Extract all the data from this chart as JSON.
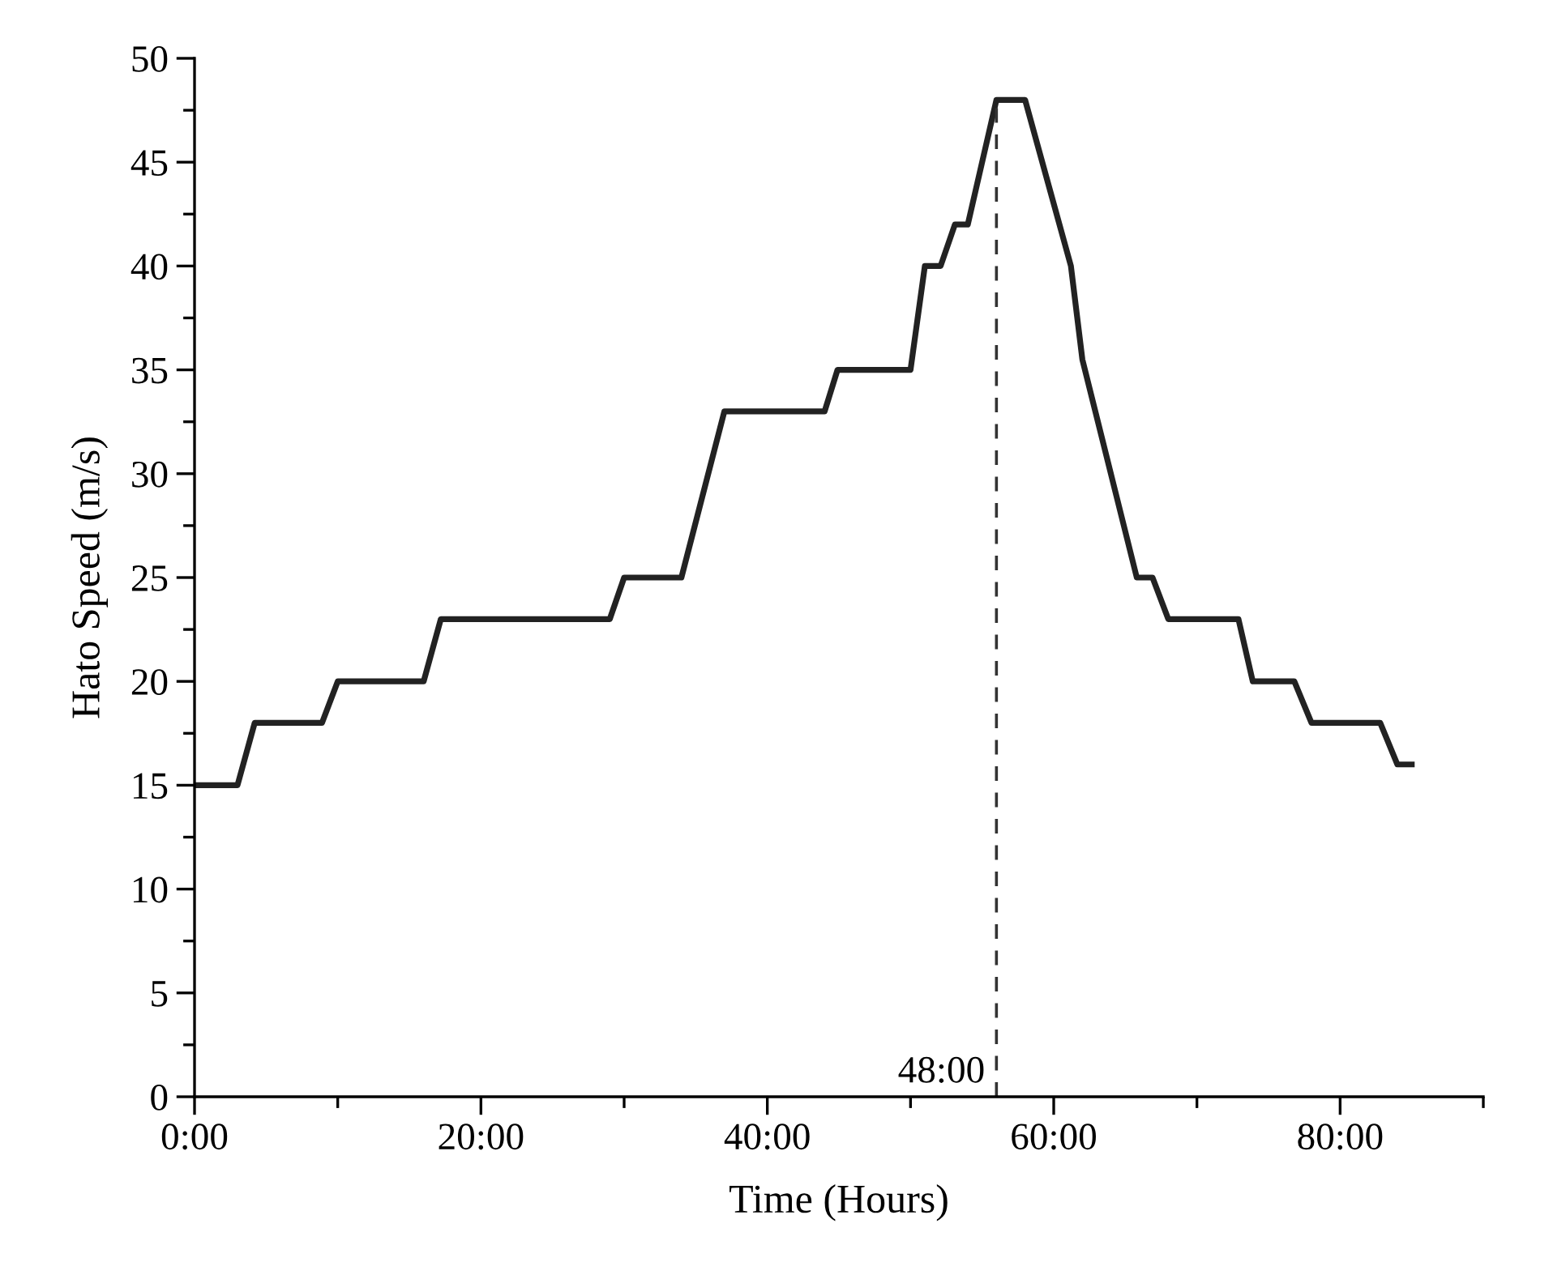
{
  "chart_data": {
    "type": "line",
    "xlabel": "Time (Hours)",
    "ylabel": "Hato Speed (m/s)",
    "x": [
      0,
      3,
      4.2,
      8.9,
      10,
      16,
      17.2,
      29,
      30,
      34,
      37,
      44,
      44.9,
      50,
      51,
      52.1,
      53.1,
      54,
      56,
      58,
      61.2,
      62,
      65.8,
      66.9,
      68,
      72.9,
      73.9,
      76.8,
      78,
      82.8,
      84,
      85
    ],
    "series": [
      {
        "color": "#222222",
        "values": [
          15,
          15,
          18,
          18,
          20,
          20,
          23,
          23,
          25,
          25,
          33,
          33,
          35,
          35,
          40,
          40,
          42,
          42,
          48,
          48,
          40,
          35.5,
          25,
          25,
          23,
          23,
          20,
          20,
          18,
          18,
          16,
          16
        ]
      }
    ],
    "xlim": [
      0,
      90
    ],
    "ylim": [
      0,
      50
    ],
    "xticks": [
      {
        "value": 0,
        "label": "0:00"
      },
      {
        "value": 10,
        "label": null
      },
      {
        "value": 20,
        "label": "20:00"
      },
      {
        "value": 30,
        "label": null
      },
      {
        "value": 40,
        "label": "40:00"
      },
      {
        "value": 50,
        "label": null
      },
      {
        "value": 60,
        "label": "60:00"
      },
      {
        "value": 70,
        "label": null
      },
      {
        "value": 80,
        "label": "80:00"
      },
      {
        "value": 90,
        "label": null
      }
    ],
    "yticks": [
      0,
      {
        "value": 2.5,
        "label": null
      },
      5,
      {
        "value": 7.5,
        "label": null
      },
      10,
      {
        "value": 12.5,
        "label": null
      },
      15,
      {
        "value": 17.5,
        "label": null
      },
      20,
      {
        "value": 22.5,
        "label": null
      },
      25,
      {
        "value": 27.5,
        "label": null
      },
      30,
      {
        "value": 32.5,
        "label": null
      },
      35,
      {
        "value": 37.5,
        "label": null
      },
      40,
      {
        "value": 42.5,
        "label": null
      },
      45,
      {
        "value": 47.5,
        "label": null
      },
      50
    ],
    "ref_lines": [
      {
        "axis": "x",
        "value": 56,
        "color": "#333333",
        "line_style": "dashed"
      }
    ],
    "annotations": [
      "48:00"
    ],
    "grid": false,
    "legend": false,
    "marker": "none",
    "line_style": "solid"
  }
}
